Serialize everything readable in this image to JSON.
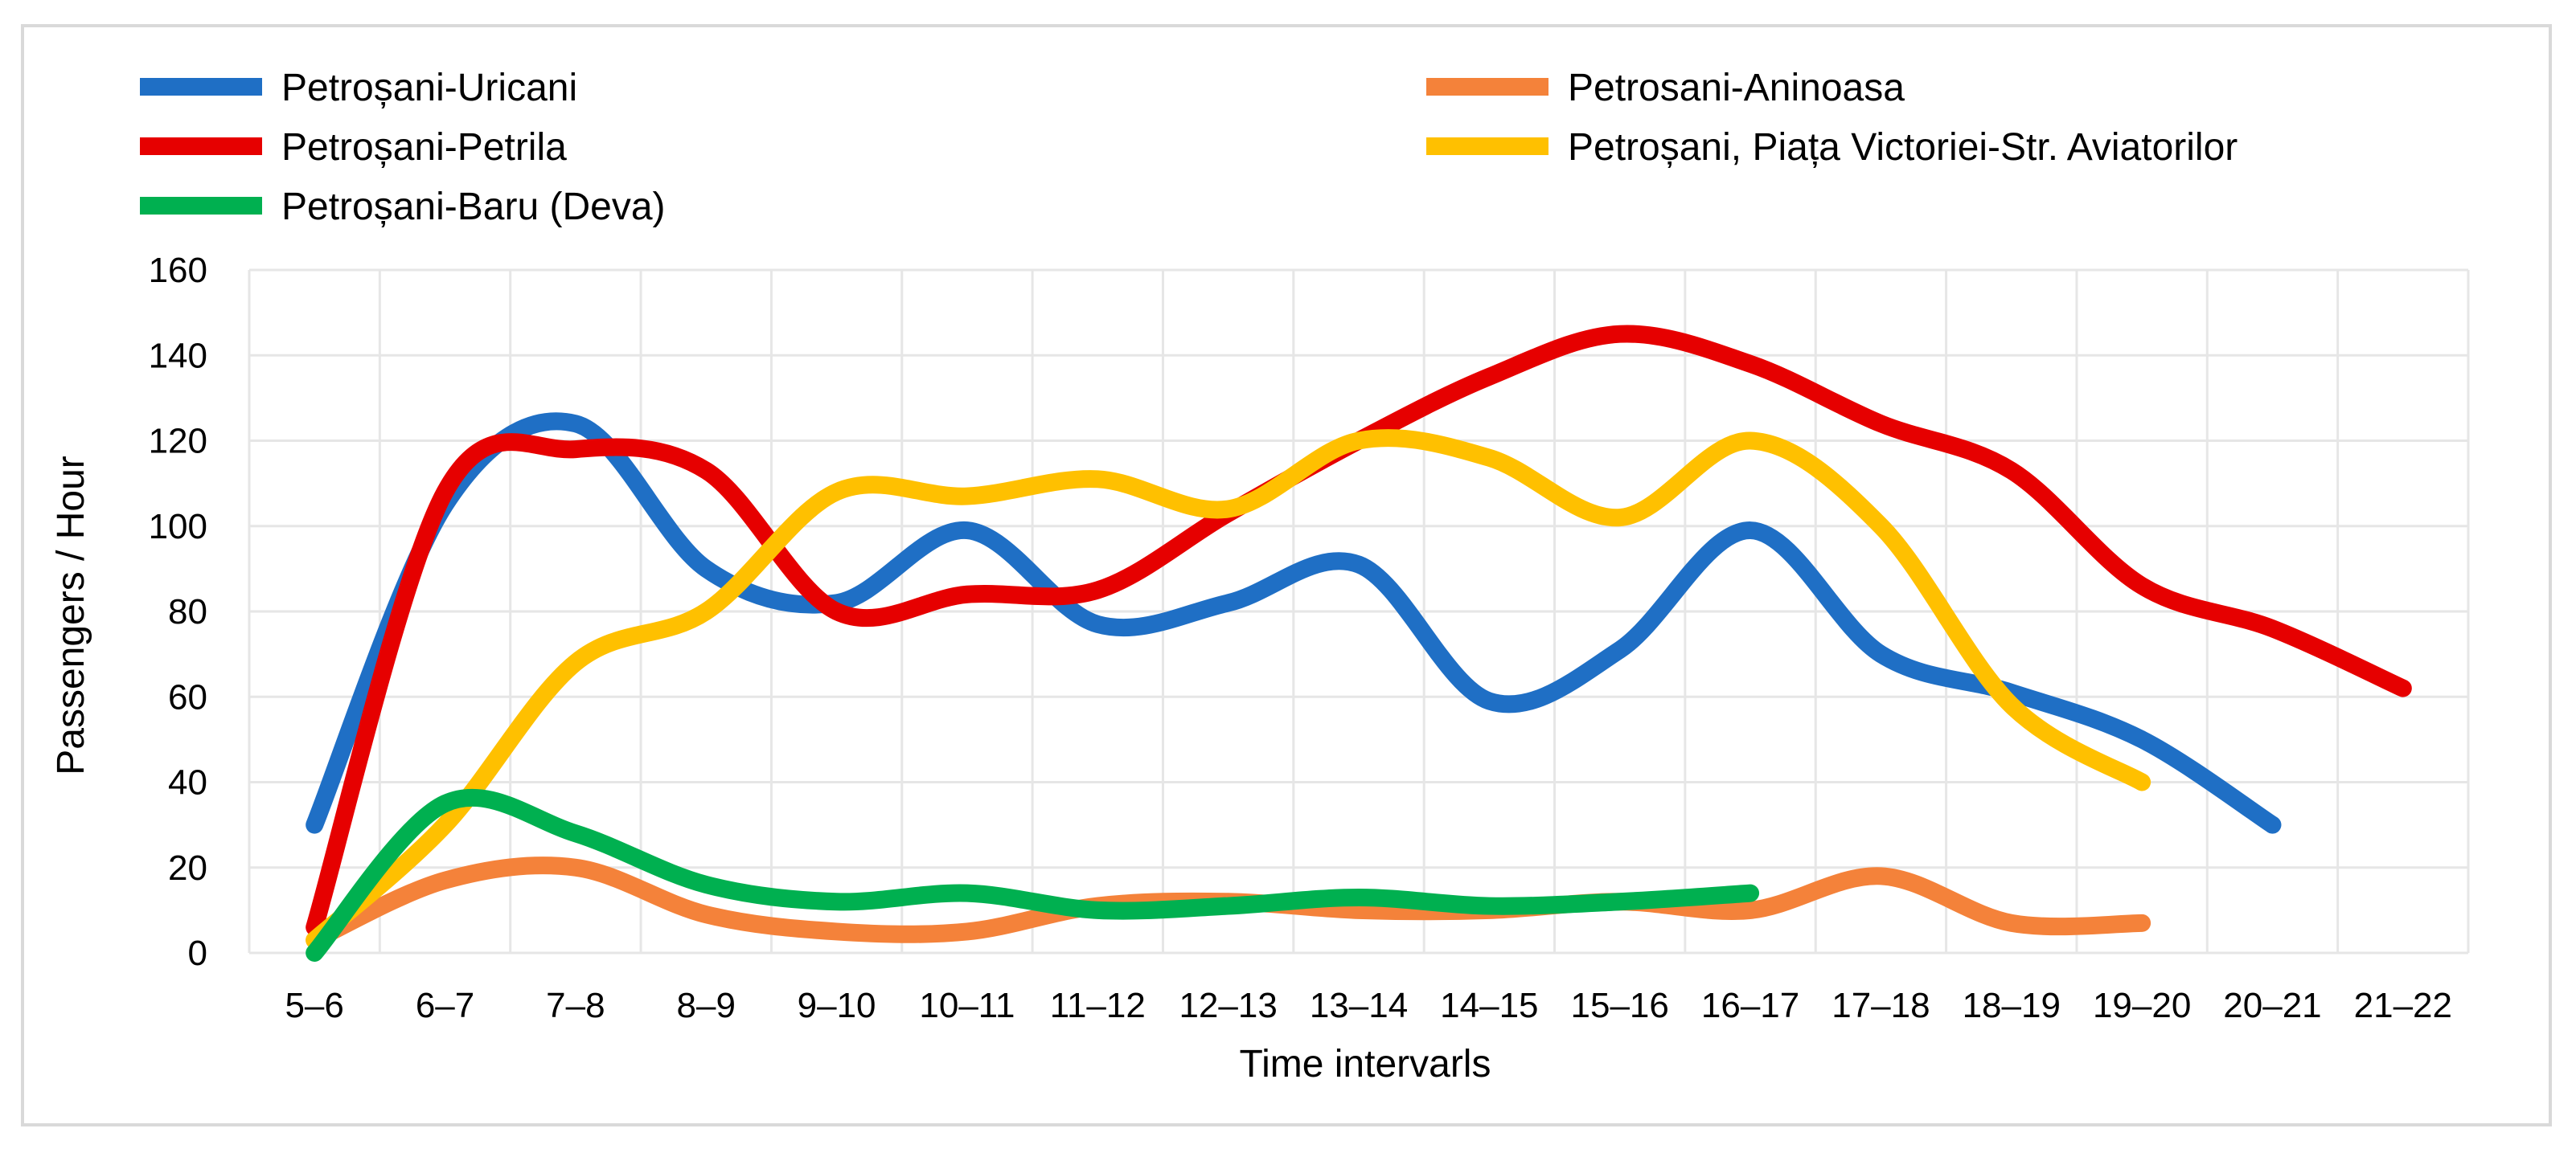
{
  "chart_data": {
    "type": "line",
    "title": "",
    "xlabel": "Time intervarls",
    "ylabel": "Passengers / Hour",
    "ylim": [
      0,
      160
    ],
    "yticks": [
      0,
      20,
      40,
      60,
      80,
      100,
      120,
      140,
      160
    ],
    "grid": true,
    "legend_position": "top",
    "categories": [
      "5–6",
      "6–7",
      "7–8",
      "8–9",
      "9–10",
      "10–11",
      "11–12",
      "12–13",
      "13–14",
      "14–15",
      "15–16",
      "16–17",
      "17–18",
      "18–19",
      "19–20",
      "20–21",
      "21–22"
    ],
    "series": [
      {
        "name": "Petroșani-Uricani",
        "color": "#1f6fc5",
        "values": [
          30,
          105,
          124,
          90,
          82,
          99,
          77,
          82,
          91,
          59,
          71,
          99,
          70,
          61,
          50,
          30,
          null
        ]
      },
      {
        "name": "Petrosani-Aninoasa",
        "color": "#f4823a",
        "values": [
          3,
          17,
          20,
          9,
          5,
          5,
          11,
          12,
          10,
          10,
          12,
          10,
          18,
          7,
          7,
          null,
          null
        ]
      },
      {
        "name": "Petroșani-Petrila",
        "color": "#e60000",
        "values": [
          6,
          108,
          118,
          113,
          80,
          84,
          85,
          103,
          120,
          135,
          145,
          138,
          124,
          113,
          86,
          76,
          62
        ]
      },
      {
        "name": "Petroșani, Piața Victoriei-Str. Aviatorilor",
        "color": "#ffc000",
        "values": [
          3,
          30,
          68,
          80,
          108,
          107,
          111,
          104,
          120,
          116,
          102,
          120,
          100,
          58,
          40,
          null,
          null
        ]
      },
      {
        "name": "Petroșani-Baru (Deva)",
        "color": "#00b050",
        "values": [
          0,
          35,
          28,
          16,
          12,
          14,
          10,
          11,
          13,
          11,
          12,
          14,
          null,
          null,
          null,
          null,
          null
        ]
      }
    ]
  }
}
